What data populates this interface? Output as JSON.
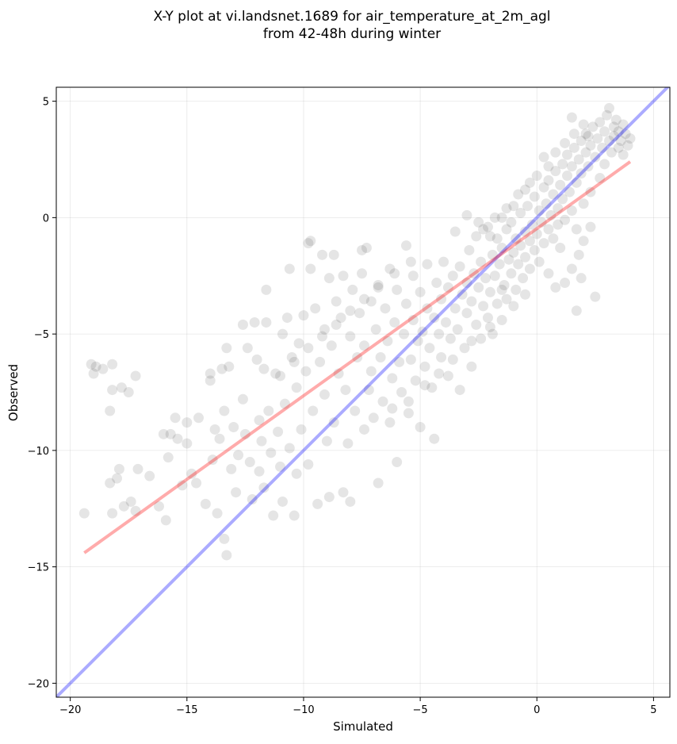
{
  "chart_data": {
    "type": "scatter",
    "title": "X-Y plot at vi.landsnet.1689 for air_temperature_at_2m_agl\nfrom 42-48h during winter",
    "title_lines": [
      "X-Y plot at vi.landsnet.1689 for air_temperature_at_2m_agl",
      "from 42-48h during winter"
    ],
    "xlabel": "Simulated",
    "ylabel": "Observed",
    "xlim": [
      -20.6,
      5.7
    ],
    "ylim": [
      -20.6,
      5.6
    ],
    "xticks": [
      -20,
      -15,
      -10,
      -5,
      0,
      5
    ],
    "yticks": [
      -20,
      -15,
      -10,
      -5,
      0,
      5
    ],
    "xtick_labels": [
      "−20",
      "−15",
      "−10",
      "−5",
      "0",
      "5"
    ],
    "ytick_labels": [
      "−20",
      "−15",
      "−10",
      "−5",
      "0",
      "5"
    ],
    "grid": true,
    "point_color": "#000000",
    "point_opacity": 0.1,
    "identity_line": {
      "x": [
        -20.6,
        5.7
      ],
      "y": [
        -20.6,
        5.7
      ],
      "color": "#0000ff",
      "opacity": 0.33
    },
    "fit_line": {
      "x": [
        -19.4,
        4.0
      ],
      "y": [
        -14.4,
        2.4
      ],
      "color": "#ff0000",
      "opacity": 0.33
    },
    "points": [
      [
        -19.4,
        -12.7
      ],
      [
        -19.1,
        -6.3
      ],
      [
        -19.0,
        -6.7
      ],
      [
        -18.9,
        -6.4
      ],
      [
        -18.6,
        -6.5
      ],
      [
        -18.2,
        -6.3
      ],
      [
        -18.3,
        -8.3
      ],
      [
        -18.2,
        -7.4
      ],
      [
        -17.8,
        -7.3
      ],
      [
        -17.5,
        -7.5
      ],
      [
        -17.2,
        -6.8
      ],
      [
        -18.3,
        -11.4
      ],
      [
        -18.0,
        -11.2
      ],
      [
        -17.9,
        -10.8
      ],
      [
        -18.2,
        -12.7
      ],
      [
        -17.7,
        -12.4
      ],
      [
        -17.4,
        -12.2
      ],
      [
        -17.2,
        -12.6
      ],
      [
        -17.1,
        -10.8
      ],
      [
        -16.6,
        -11.1
      ],
      [
        -16.2,
        -12.4
      ],
      [
        -15.9,
        -13.0
      ],
      [
        -15.8,
        -10.3
      ],
      [
        -15.7,
        -9.3
      ],
      [
        -15.5,
        -8.6
      ],
      [
        -15.4,
        -9.5
      ],
      [
        -15.2,
        -11.5
      ],
      [
        -15.0,
        -9.7
      ],
      [
        -14.8,
        -11.0
      ],
      [
        -14.6,
        -11.4
      ],
      [
        -14.5,
        -8.6
      ],
      [
        -14.2,
        -12.3
      ],
      [
        -14.0,
        -6.7
      ],
      [
        -13.9,
        -10.4
      ],
      [
        -13.8,
        -9.1
      ],
      [
        -13.7,
        -12.7
      ],
      [
        -13.6,
        -9.5
      ],
      [
        -13.5,
        -6.5
      ],
      [
        -13.4,
        -8.3
      ],
      [
        -13.4,
        -13.8
      ],
      [
        -13.3,
        -14.5
      ],
      [
        -13.2,
        -6.4
      ],
      [
        -13.1,
        -10.8
      ],
      [
        -13.0,
        -9.0
      ],
      [
        -12.9,
        -11.8
      ],
      [
        -12.8,
        -10.2
      ],
      [
        -12.6,
        -7.8
      ],
      [
        -12.5,
        -9.3
      ],
      [
        -12.4,
        -5.6
      ],
      [
        -12.3,
        -10.5
      ],
      [
        -12.2,
        -12.1
      ],
      [
        -12.1,
        -4.5
      ],
      [
        -12.0,
        -6.1
      ],
      [
        -11.9,
        -8.7
      ],
      [
        -11.9,
        -10.9
      ],
      [
        -11.8,
        -9.6
      ],
      [
        -11.7,
        -6.5
      ],
      [
        -11.7,
        -11.6
      ],
      [
        -11.6,
        -4.5
      ],
      [
        -11.5,
        -8.3
      ],
      [
        -11.4,
        -10.1
      ],
      [
        -11.3,
        -12.8
      ],
      [
        -11.2,
        -6.7
      ],
      [
        -11.1,
        -9.2
      ],
      [
        -11.0,
        -10.7
      ],
      [
        -10.9,
        -5.0
      ],
      [
        -10.9,
        -12.2
      ],
      [
        -10.8,
        -8.0
      ],
      [
        -10.7,
        -4.3
      ],
      [
        -10.6,
        -9.9
      ],
      [
        -10.5,
        -6.0
      ],
      [
        -10.4,
        -12.8
      ],
      [
        -10.3,
        -11.0
      ],
      [
        -10.3,
        -7.3
      ],
      [
        -10.2,
        -5.4
      ],
      [
        -10.1,
        -9.1
      ],
      [
        -10.0,
        -4.2
      ],
      [
        -9.9,
        -6.6
      ],
      [
        -9.8,
        -10.6
      ],
      [
        -9.7,
        -2.2
      ],
      [
        -9.7,
        -1.0
      ],
      [
        -9.6,
        -8.3
      ],
      [
        -9.5,
        -3.9
      ],
      [
        -9.4,
        -12.3
      ],
      [
        -9.3,
        -6.2
      ],
      [
        -9.2,
        -1.6
      ],
      [
        -9.1,
        -4.8
      ],
      [
        -9.1,
        -7.6
      ],
      [
        -9.0,
        -9.6
      ],
      [
        -8.9,
        -2.6
      ],
      [
        -8.9,
        -12.0
      ],
      [
        -8.8,
        -5.5
      ],
      [
        -8.7,
        -8.8
      ],
      [
        -8.6,
        -3.6
      ],
      [
        -8.5,
        -6.7
      ],
      [
        -8.4,
        -4.3
      ],
      [
        -8.3,
        -11.8
      ],
      [
        -8.3,
        -2.5
      ],
      [
        -8.2,
        -7.4
      ],
      [
        -8.1,
        -9.7
      ],
      [
        -8.0,
        -5.1
      ],
      [
        -8.0,
        -12.2
      ],
      [
        -7.9,
        -3.1
      ],
      [
        -7.8,
        -8.3
      ],
      [
        -7.7,
        -6.0
      ],
      [
        -7.6,
        -4.1
      ],
      [
        -7.5,
        -2.4
      ],
      [
        -7.4,
        -9.1
      ],
      [
        -7.4,
        -5.5
      ],
      [
        -7.3,
        -1.3
      ],
      [
        -7.2,
        -7.4
      ],
      [
        -7.1,
        -3.6
      ],
      [
        -7.1,
        -6.6
      ],
      [
        -7.0,
        -8.6
      ],
      [
        -6.9,
        -4.8
      ],
      [
        -6.8,
        -2.9
      ],
      [
        -6.8,
        -11.4
      ],
      [
        -6.7,
        -6.0
      ],
      [
        -6.6,
        -7.9
      ],
      [
        -6.5,
        -3.9
      ],
      [
        -6.4,
        -5.3
      ],
      [
        -6.3,
        -2.2
      ],
      [
        -6.3,
        -8.8
      ],
      [
        -6.2,
        -6.9
      ],
      [
        -6.1,
        -4.5
      ],
      [
        -6.0,
        -10.5
      ],
      [
        -6.0,
        -3.1
      ],
      [
        -5.9,
        -6.2
      ],
      [
        -5.8,
        -7.5
      ],
      [
        -5.7,
        -5.0
      ],
      [
        -5.6,
        -1.2
      ],
      [
        -5.6,
        -3.7
      ],
      [
        -5.5,
        -8.4
      ],
      [
        -5.4,
        -6.1
      ],
      [
        -5.3,
        -2.5
      ],
      [
        -5.3,
        -4.4
      ],
      [
        -5.2,
        -7.0
      ],
      [
        -5.1,
        -5.3
      ],
      [
        -5.0,
        -3.2
      ],
      [
        -5.0,
        -9.0
      ],
      [
        -4.9,
        -4.9
      ],
      [
        -4.8,
        -6.4
      ],
      [
        -4.7,
        -2.0
      ],
      [
        -4.7,
        -3.9
      ],
      [
        -4.6,
        -5.6
      ],
      [
        -4.5,
        -7.3
      ],
      [
        -4.4,
        -4.3
      ],
      [
        -4.4,
        -9.5
      ],
      [
        -4.3,
        -2.8
      ],
      [
        -4.2,
        -5.0
      ],
      [
        -4.1,
        -3.5
      ],
      [
        -4.1,
        -6.0
      ],
      [
        -4.0,
        -1.9
      ],
      [
        -3.9,
        -4.5
      ],
      [
        -3.8,
        -3.0
      ],
      [
        -3.8,
        -6.8
      ],
      [
        -3.7,
        -5.2
      ],
      [
        -3.6,
        -2.5
      ],
      [
        -3.5,
        -3.9
      ],
      [
        -3.5,
        -0.6
      ],
      [
        -3.4,
        -4.8
      ],
      [
        -3.3,
        -2.1
      ],
      [
        -3.3,
        -7.4
      ],
      [
        -3.2,
        -3.3
      ],
      [
        -3.1,
        -5.6
      ],
      [
        -3.0,
        -2.8
      ],
      [
        -3.0,
        -4.1
      ],
      [
        -2.9,
        -1.4
      ],
      [
        -2.8,
        -3.6
      ],
      [
        -2.8,
        -6.4
      ],
      [
        -2.7,
        -2.4
      ],
      [
        -2.6,
        -4.6
      ],
      [
        -2.6,
        -0.8
      ],
      [
        -2.5,
        -3.0
      ],
      [
        -2.4,
        -5.2
      ],
      [
        -2.4,
        -1.9
      ],
      [
        -2.3,
        -3.8
      ],
      [
        -2.2,
        -2.6
      ],
      [
        -2.1,
        -4.3
      ],
      [
        -2.1,
        -0.4
      ],
      [
        -2.0,
        -3.2
      ],
      [
        -1.9,
        -1.6
      ],
      [
        -1.9,
        -5.0
      ],
      [
        -1.8,
        -2.5
      ],
      [
        -1.7,
        -3.7
      ],
      [
        -1.7,
        -0.9
      ],
      [
        -1.6,
        -2.0
      ],
      [
        -1.5,
        -4.4
      ],
      [
        -1.5,
        -1.3
      ],
      [
        -1.4,
        -2.9
      ],
      [
        -1.3,
        -0.5
      ],
      [
        -1.3,
        -3.5
      ],
      [
        -1.2,
        -1.8
      ],
      [
        -1.1,
        -2.4
      ],
      [
        -1.1,
        -0.2
      ],
      [
        -1.0,
        -1.5
      ],
      [
        -0.9,
        -3.1
      ],
      [
        -0.9,
        -0.9
      ],
      [
        -0.8,
        -2.0
      ],
      [
        -0.7,
        0.2
      ],
      [
        -0.7,
        -1.2
      ],
      [
        -0.6,
        -2.6
      ],
      [
        -0.5,
        -0.6
      ],
      [
        -0.5,
        -1.7
      ],
      [
        -0.4,
        0.5
      ],
      [
        -0.3,
        -1.0
      ],
      [
        -0.3,
        -2.2
      ],
      [
        -0.2,
        -0.3
      ],
      [
        -0.1,
        -1.4
      ],
      [
        -0.1,
        0.9
      ],
      [
        0.0,
        -0.7
      ],
      [
        0.1,
        -1.9
      ],
      [
        0.1,
        0.3
      ],
      [
        0.2,
        -0.2
      ],
      [
        0.3,
        1.3
      ],
      [
        0.3,
        -1.1
      ],
      [
        0.4,
        0.6
      ],
      [
        0.5,
        -0.5
      ],
      [
        0.5,
        1.6
      ],
      [
        0.6,
        0.1
      ],
      [
        0.7,
        -0.9
      ],
      [
        0.7,
        1.0
      ],
      [
        0.8,
        2.0
      ],
      [
        0.9,
        0.4
      ],
      [
        0.9,
        -0.3
      ],
      [
        1.0,
        1.4
      ],
      [
        1.1,
        2.3
      ],
      [
        1.1,
        0.8
      ],
      [
        1.2,
        -0.1
      ],
      [
        1.3,
        1.8
      ],
      [
        1.3,
        2.7
      ],
      [
        1.4,
        1.1
      ],
      [
        1.5,
        0.3
      ],
      [
        1.5,
        2.2
      ],
      [
        1.6,
        3.0
      ],
      [
        1.7,
        1.5
      ],
      [
        1.7,
        -0.5
      ],
      [
        1.8,
        2.5
      ],
      [
        1.9,
        3.3
      ],
      [
        1.9,
        1.9
      ],
      [
        2.0,
        0.6
      ],
      [
        2.1,
        2.8
      ],
      [
        2.1,
        3.6
      ],
      [
        2.2,
        2.2
      ],
      [
        2.3,
        1.1
      ],
      [
        2.3,
        3.1
      ],
      [
        2.4,
        3.9
      ],
      [
        2.5,
        2.6
      ],
      [
        2.5,
        -3.4
      ],
      [
        2.6,
        3.4
      ],
      [
        2.7,
        1.7
      ],
      [
        2.7,
        4.1
      ],
      [
        2.8,
        3.0
      ],
      [
        2.9,
        3.7
      ],
      [
        2.9,
        2.3
      ],
      [
        3.0,
        4.4
      ],
      [
        3.1,
        3.3
      ],
      [
        3.1,
        4.7
      ],
      [
        3.2,
        2.8
      ],
      [
        3.3,
        3.9
      ],
      [
        3.3,
        3.5
      ],
      [
        3.4,
        4.2
      ],
      [
        3.5,
        3.0
      ],
      [
        3.5,
        3.7
      ],
      [
        3.6,
        3.3
      ],
      [
        3.7,
        4.0
      ],
      [
        3.7,
        2.7
      ],
      [
        3.8,
        3.6
      ],
      [
        3.9,
        3.1
      ],
      [
        4.0,
        3.4
      ],
      [
        -3.0,
        0.1
      ],
      [
        -2.5,
        -0.2
      ],
      [
        -2.0,
        -0.8
      ],
      [
        -1.5,
        0.0
      ],
      [
        -1.0,
        0.5
      ],
      [
        -0.5,
        1.2
      ],
      [
        0.0,
        1.8
      ],
      [
        0.5,
        2.2
      ],
      [
        0.8,
        2.8
      ],
      [
        1.2,
        3.2
      ],
      [
        1.6,
        3.6
      ],
      [
        2.0,
        4.0
      ],
      [
        1.5,
        4.3
      ],
      [
        2.2,
        3.5
      ],
      [
        0.3,
        2.6
      ],
      [
        -0.3,
        1.5
      ],
      [
        -0.8,
        1.0
      ],
      [
        -1.3,
        0.4
      ],
      [
        -1.8,
        0.0
      ],
      [
        -2.3,
        -0.5
      ],
      [
        2.0,
        -1.0
      ],
      [
        1.8,
        -1.6
      ],
      [
        1.5,
        -2.2
      ],
      [
        1.2,
        -2.8
      ],
      [
        1.0,
        -1.3
      ],
      [
        2.3,
        -0.4
      ],
      [
        1.9,
        -2.6
      ],
      [
        0.5,
        -2.4
      ],
      [
        0.8,
        -3.0
      ],
      [
        1.7,
        -4.0
      ],
      [
        -0.5,
        -3.3
      ],
      [
        -1.0,
        -3.8
      ],
      [
        -1.5,
        -3.1
      ],
      [
        -2.0,
        -4.7
      ],
      [
        -2.8,
        -5.3
      ],
      [
        -3.6,
        -6.1
      ],
      [
        -4.2,
        -6.7
      ],
      [
        -4.8,
        -7.2
      ],
      [
        -5.5,
        -7.9
      ],
      [
        -6.2,
        -8.2
      ],
      [
        -5.4,
        -1.9
      ],
      [
        -6.1,
        -2.4
      ],
      [
        -6.8,
        -3.0
      ],
      [
        -7.4,
        -3.5
      ],
      [
        -8.0,
        -4.0
      ],
      [
        -8.6,
        -4.6
      ],
      [
        -9.2,
        -5.1
      ],
      [
        -9.8,
        -5.6
      ],
      [
        -10.4,
        -6.2
      ],
      [
        -11.0,
        -6.8
      ],
      [
        -7.5,
        -1.4
      ],
      [
        -8.7,
        -1.6
      ],
      [
        -9.8,
        -1.1
      ],
      [
        -10.6,
        -2.2
      ],
      [
        -11.6,
        -3.1
      ],
      [
        -12.6,
        -4.6
      ],
      [
        -13.3,
        -5.6
      ],
      [
        -14.0,
        -7.0
      ],
      [
        -15.0,
        -8.8
      ],
      [
        -16.0,
        -9.3
      ]
    ]
  }
}
